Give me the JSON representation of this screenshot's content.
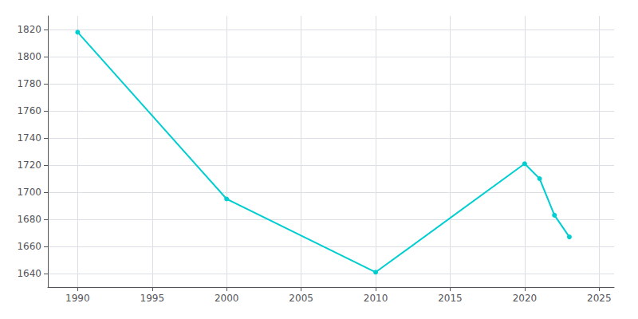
{
  "chart_data": {
    "type": "line",
    "x": [
      1990,
      2000,
      2010,
      2020,
      2021,
      2022,
      2023
    ],
    "values": [
      1818,
      1695,
      1641,
      1721,
      1710,
      1683,
      1667
    ],
    "color": "#00CED1",
    "marker": "circle",
    "xlim": [
      1988,
      2026
    ],
    "ylim": [
      1630,
      1830
    ],
    "xticks": [
      1990,
      1995,
      2000,
      2005,
      2010,
      2015,
      2020,
      2025
    ],
    "yticks": [
      1640,
      1660,
      1680,
      1700,
      1720,
      1740,
      1760,
      1780,
      1800,
      1820
    ],
    "grid": true
  }
}
